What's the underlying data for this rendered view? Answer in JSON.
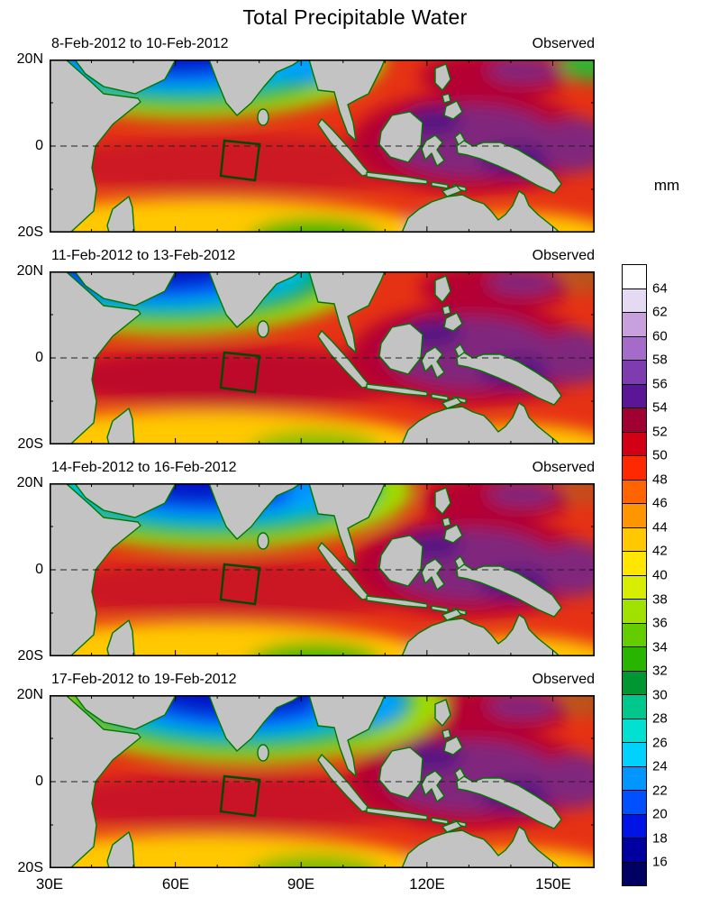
{
  "title": "Total Precipitable Water",
  "panels": [
    {
      "date_range": "8-Feb-2012 to 10-Feb-2012",
      "source": "Observed"
    },
    {
      "date_range": "11-Feb-2012 to 13-Feb-2012",
      "source": "Observed"
    },
    {
      "date_range": "14-Feb-2012 to 16-Feb-2012",
      "source": "Observed"
    },
    {
      "date_range": "17-Feb-2012 to 19-Feb-2012",
      "source": "Observed"
    }
  ],
  "axes": {
    "y_ticks": [
      "20N",
      "0",
      "20S"
    ],
    "x_ticks": [
      "30E",
      "60E",
      "90E",
      "120E",
      "150E"
    ]
  },
  "colorbar": {
    "unit": "mm",
    "tick_labels": [
      64,
      62,
      60,
      58,
      56,
      54,
      52,
      50,
      48,
      46,
      44,
      42,
      40,
      38,
      36,
      34,
      32,
      30,
      28,
      26,
      24,
      22,
      20,
      18,
      16
    ],
    "cells_top_to_bottom": [
      "#ffffff",
      "#e6d9f2",
      "#c8a0dd",
      "#a46cc8",
      "#7f3cb0",
      "#5a1696",
      "#a00032",
      "#d20014",
      "#ff2800",
      "#ff6400",
      "#ff9600",
      "#ffc800",
      "#ffe600",
      "#d7ee00",
      "#a0e100",
      "#64cd00",
      "#28b400",
      "#009632",
      "#00c88c",
      "#00e1d2",
      "#00d2ff",
      "#0096ff",
      "#0050ff",
      "#0014e6",
      "#0000a0",
      "#000064"
    ]
  },
  "chart_data": {
    "type": "heatmap",
    "title": "Total Precipitable Water",
    "unit": "mm",
    "lon_range": [
      30,
      160
    ],
    "lat_range": [
      -20,
      20
    ],
    "levels": [
      16,
      18,
      20,
      22,
      24,
      26,
      28,
      30,
      32,
      34,
      36,
      38,
      40,
      42,
      44,
      46,
      48,
      50,
      52,
      54,
      56,
      58,
      60,
      62,
      64
    ],
    "colormap_top_to_bottom": [
      "#ffffff",
      "#e6d9f2",
      "#c8a0dd",
      "#a46cc8",
      "#7f3cb0",
      "#5a1696",
      "#a00032",
      "#d20014",
      "#ff2800",
      "#ff6400",
      "#ff9600",
      "#ffc800",
      "#ffe600",
      "#d7ee00",
      "#a0e100",
      "#64cd00",
      "#28b400",
      "#009632",
      "#00c88c",
      "#00e1d2",
      "#00d2ff",
      "#0096ff",
      "#0050ff",
      "#0014e6",
      "#0000a0",
      "#000064"
    ],
    "grid_lons": [
      30,
      40,
      50,
      60,
      70,
      80,
      90,
      100,
      110,
      120,
      130,
      140,
      150,
      160
    ],
    "grid_lats": [
      20,
      10,
      0,
      -10,
      -20
    ],
    "panels": [
      {
        "date_range": "8-Feb-2012 to 10-Feb-2012",
        "source": "Observed",
        "values_by_lat": [
          [
            null,
            null,
            null,
            22,
            18,
            28,
            null,
            null,
            45,
            50,
            52,
            50,
            46,
            40
          ],
          [
            null,
            null,
            40,
            32,
            30,
            36,
            44,
            48,
            52,
            54,
            52,
            50,
            50,
            48
          ],
          [
            null,
            46,
            50,
            52,
            52,
            50,
            50,
            52,
            54,
            56,
            58,
            54,
            52,
            50
          ],
          [
            null,
            50,
            52,
            54,
            52,
            50,
            48,
            50,
            52,
            54,
            56,
            54,
            50,
            48
          ],
          [
            null,
            46,
            44,
            44,
            42,
            38,
            34,
            40,
            44,
            30,
            null,
            null,
            null,
            44
          ]
        ]
      },
      {
        "date_range": "11-Feb-2012 to 13-Feb-2012",
        "source": "Observed",
        "values_by_lat": [
          [
            null,
            null,
            null,
            18,
            16,
            26,
            null,
            null,
            46,
            52,
            54,
            52,
            48,
            44
          ],
          [
            null,
            null,
            38,
            26,
            24,
            34,
            46,
            50,
            54,
            56,
            54,
            52,
            52,
            50
          ],
          [
            null,
            48,
            52,
            54,
            54,
            52,
            52,
            54,
            56,
            58,
            58,
            56,
            54,
            52
          ],
          [
            null,
            52,
            54,
            56,
            54,
            52,
            50,
            52,
            54,
            56,
            56,
            54,
            52,
            50
          ],
          [
            null,
            48,
            46,
            46,
            44,
            40,
            36,
            42,
            44,
            34,
            null,
            null,
            null,
            46
          ]
        ]
      },
      {
        "date_range": "14-Feb-2012 to 16-Feb-2012",
        "source": "Observed",
        "values_by_lat": [
          [
            null,
            null,
            null,
            24,
            18,
            20,
            null,
            null,
            42,
            48,
            52,
            50,
            48,
            44
          ],
          [
            null,
            null,
            42,
            36,
            30,
            30,
            40,
            46,
            52,
            54,
            54,
            52,
            50,
            48
          ],
          [
            null,
            48,
            50,
            52,
            52,
            50,
            48,
            50,
            54,
            56,
            56,
            54,
            52,
            50
          ],
          [
            null,
            50,
            52,
            54,
            52,
            50,
            46,
            48,
            52,
            54,
            54,
            52,
            50,
            48
          ],
          [
            null,
            46,
            44,
            42,
            40,
            36,
            32,
            38,
            42,
            36,
            null,
            null,
            null,
            44
          ]
        ]
      },
      {
        "date_range": "17-Feb-2012 to 19-Feb-2012",
        "source": "Observed",
        "values_by_lat": [
          [
            null,
            null,
            null,
            30,
            26,
            22,
            null,
            null,
            44,
            50,
            52,
            50,
            48,
            46
          ],
          [
            null,
            null,
            44,
            40,
            34,
            28,
            38,
            46,
            52,
            54,
            54,
            52,
            50,
            48
          ],
          [
            null,
            48,
            50,
            52,
            52,
            50,
            50,
            52,
            54,
            56,
            56,
            54,
            52,
            50
          ],
          [
            null,
            50,
            52,
            54,
            54,
            52,
            48,
            50,
            52,
            54,
            54,
            52,
            50,
            48
          ],
          [
            null,
            46,
            44,
            44,
            42,
            38,
            34,
            40,
            44,
            38,
            null,
            null,
            null,
            44
          ]
        ]
      }
    ],
    "annotations": [
      {
        "type": "box",
        "lon": [
          72,
          80
        ],
        "lat": [
          -8,
          1
        ],
        "note": "dark green outlined region drawn on every panel"
      }
    ],
    "layout": {
      "panels_stacked": 4,
      "colorbar_position": "right",
      "x_labels_bottom_only": true,
      "land_color": "#c3c3c3",
      "coastline_color": "#007700"
    }
  }
}
